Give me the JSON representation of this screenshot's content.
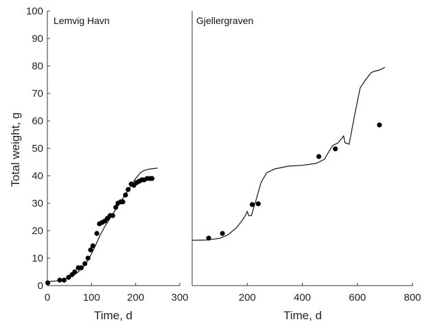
{
  "chart_data": [
    {
      "type": "scatter",
      "title": "Lemvig Havn",
      "xlabel": "Time, d",
      "ylabel": "Total weight, g",
      "xlim": [
        0,
        300
      ],
      "ylim": [
        0,
        100
      ],
      "xticks": [
        0,
        100,
        200,
        300
      ],
      "yticks": [
        0,
        10,
        20,
        30,
        40,
        50,
        60,
        70,
        80,
        90,
        100
      ],
      "grid": false,
      "series": [
        {
          "kind": "points",
          "x": [
            1,
            28,
            38,
            48,
            56,
            62,
            70,
            77,
            85,
            92,
            98,
            103,
            112,
            118,
            124,
            130,
            136,
            142,
            148,
            155,
            160,
            166,
            171,
            177,
            183,
            190,
            196,
            202,
            208,
            214,
            219,
            226,
            232,
            237
          ],
          "y": [
            1,
            2,
            2,
            3,
            4,
            5,
            6.5,
            6.5,
            8,
            10,
            13,
            14.5,
            19,
            22.5,
            23,
            23.5,
            24.5,
            25.5,
            25.5,
            28.5,
            30,
            30.5,
            30.5,
            33,
            35,
            37,
            36.5,
            37.5,
            38,
            38.5,
            38.5,
            39,
            39,
            39
          ]
        },
        {
          "kind": "line",
          "x": [
            0,
            20,
            40,
            60,
            70,
            80,
            90,
            100,
            110,
            120,
            130,
            140,
            150,
            160,
            170,
            180,
            190,
            200,
            210,
            220,
            230,
            240,
            250
          ],
          "y": [
            1.5,
            1.7,
            2.3,
            3.8,
            5,
            6.5,
            8.8,
            11.5,
            15,
            18.5,
            21.5,
            24,
            26.5,
            29,
            31.5,
            34,
            36.5,
            39,
            41,
            42,
            42.4,
            42.6,
            42.8
          ]
        }
      ]
    },
    {
      "type": "scatter",
      "title": "Gjellergraven",
      "xlabel": "Time, d",
      "ylabel": "",
      "xlim": [
        0,
        800
      ],
      "ylim": [
        0,
        100
      ],
      "xticks": [
        200,
        400,
        600,
        800
      ],
      "grid": false,
      "series": [
        {
          "kind": "points",
          "x": [
            60,
            110,
            218,
            240,
            460,
            520,
            680
          ],
          "y": [
            17.3,
            19,
            29.5,
            29.8,
            47,
            49.8,
            58.5
          ]
        },
        {
          "kind": "line",
          "x": [
            0,
            50,
            100,
            130,
            160,
            180,
            190,
            200,
            205,
            215,
            230,
            250,
            270,
            300,
            350,
            400,
            450,
            480,
            510,
            530,
            550,
            555,
            570,
            590,
            610,
            630,
            650,
            660,
            680,
            700
          ],
          "y": [
            16.5,
            16.6,
            17.2,
            18.5,
            21,
            23.5,
            25,
            27,
            25.5,
            25.5,
            30.5,
            37.5,
            41,
            42.5,
            43.5,
            43.8,
            44.5,
            46,
            51,
            52,
            54.5,
            52,
            51.5,
            62,
            72,
            75,
            77.5,
            78,
            78.5,
            79.5
          ]
        }
      ]
    }
  ]
}
